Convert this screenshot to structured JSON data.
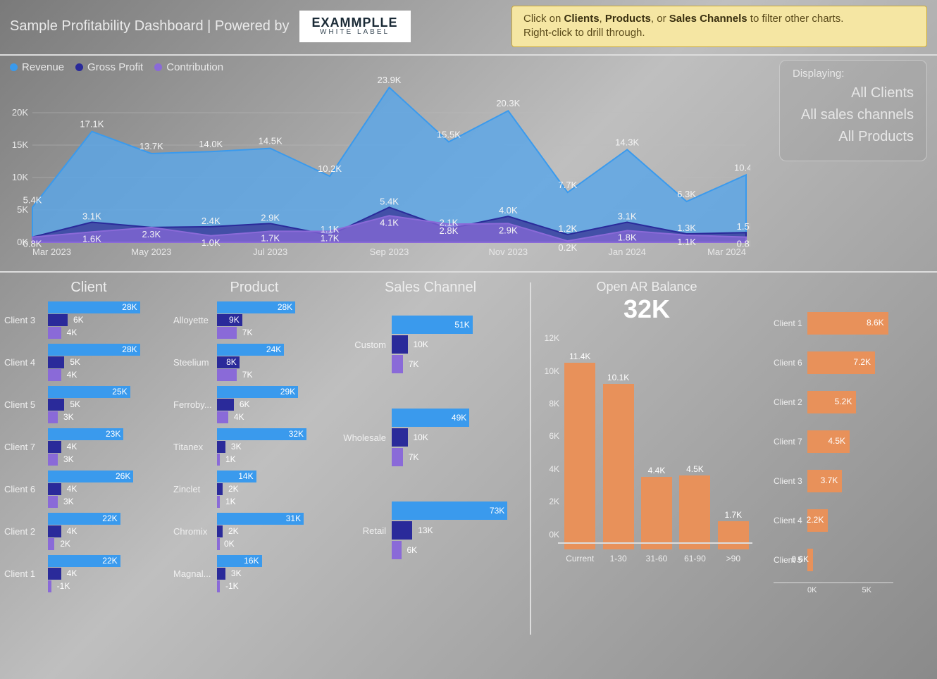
{
  "header": {
    "title": "Sample Profitability Dashboard | Powered by",
    "logo_main": "EXAMMPLLE",
    "logo_sub": "WHITE LABEL",
    "hint_line1_a": "Click on ",
    "hint_b1": "Clients",
    "hint_s1": ", ",
    "hint_b2": "Products",
    "hint_s2": ", or ",
    "hint_b3": "Sales Channels",
    "hint_line1_b": " to filter other charts.",
    "hint_line2": "Right-click to drill through."
  },
  "display_box": {
    "label": "Displaying:",
    "v1": "All Clients",
    "v2": "All sales channels",
    "v3": "All Products"
  },
  "area_chart": {
    "legend": [
      {
        "label": "Revenue",
        "color": "#3a9aed"
      },
      {
        "label": "Gross Profit",
        "color": "#2a2a9a"
      },
      {
        "label": "Contribution",
        "color": "#8a6ad8"
      }
    ],
    "y_ticks": [
      "0K",
      "5K",
      "10K",
      "15K",
      "20K"
    ],
    "y_max": 25,
    "x_labels": [
      "Mar 2023",
      "May 2023",
      "Jul 2023",
      "Sep 2023",
      "Nov 2023",
      "Jan 2024",
      "Mar 2024"
    ],
    "n_points": 13,
    "series": {
      "revenue": {
        "color": "#3a9aed",
        "fill": "#5aa6e8",
        "opacity": 0.82,
        "values": [
          5.4,
          17.1,
          13.7,
          14.0,
          14.5,
          10.2,
          23.9,
          15.5,
          20.3,
          7.7,
          14.3,
          6.3,
          10.4
        ]
      },
      "gross": {
        "color": "#2a2a9a",
        "fill": "#3a3a9a",
        "opacity": 0.8,
        "values": [
          0.8,
          3.1,
          2.3,
          2.4,
          2.9,
          1.1,
          5.4,
          2.1,
          4.0,
          1.2,
          3.1,
          1.3,
          1.5
        ]
      },
      "contribution": {
        "color": "#8a6ad8",
        "fill": "#8a6ad8",
        "opacity": 0.7,
        "values": [
          0.8,
          1.6,
          2.3,
          1.0,
          1.7,
          1.7,
          4.1,
          2.8,
          2.9,
          0.2,
          1.8,
          1.1,
          0.8
        ]
      }
    },
    "point_labels": {
      "revenue": [
        "5.4K",
        "17.1K",
        "13.7K",
        "14.0K",
        "14.5K",
        "10.2K",
        "23.9K",
        "15.5K",
        "20.3K",
        "7.7K",
        "14.3K",
        "6.3K",
        "10.4K"
      ],
      "gross": [
        "",
        "3.1K",
        "",
        "2.4K",
        "2.9K",
        "1.1K",
        "5.4K",
        "2.1K",
        "4.0K",
        "1.2K",
        "3.1K",
        "1.3K",
        "1.5K"
      ],
      "contribution": [
        "0.8K",
        "1.6K",
        "2.3K",
        "1.0K",
        "1.7K",
        "1.7K",
        "4.1K",
        "2.8K",
        "2.9K",
        "0.2K",
        "1.8K",
        "1.1K",
        "0.8K"
      ]
    }
  },
  "bar_colors": {
    "revenue": "#3a9aed",
    "gross": "#2a2a9a",
    "contrib": "#8a6ad8"
  },
  "client": {
    "title": "Client",
    "max": 30,
    "rows": [
      {
        "name": "Client 3",
        "v": [
          28,
          6,
          4
        ],
        "t": [
          "28K",
          "6K",
          "4K"
        ]
      },
      {
        "name": "Client 4",
        "v": [
          28,
          5,
          4
        ],
        "t": [
          "28K",
          "5K",
          "4K"
        ]
      },
      {
        "name": "Client 5",
        "v": [
          25,
          5,
          3
        ],
        "t": [
          "25K",
          "5K",
          "3K"
        ]
      },
      {
        "name": "Client 7",
        "v": [
          23,
          4,
          3
        ],
        "t": [
          "23K",
          "4K",
          "3K"
        ]
      },
      {
        "name": "Client 6",
        "v": [
          26,
          4,
          3
        ],
        "t": [
          "26K",
          "4K",
          "3K"
        ]
      },
      {
        "name": "Client 2",
        "v": [
          22,
          4,
          2
        ],
        "t": [
          "22K",
          "4K",
          "2K"
        ]
      },
      {
        "name": "Client 1",
        "v": [
          22,
          4,
          -1
        ],
        "t": [
          "22K",
          "4K",
          "-1K"
        ]
      }
    ]
  },
  "product": {
    "title": "Product",
    "max": 34,
    "rows": [
      {
        "name": "Alloyette",
        "v": [
          28,
          9,
          7
        ],
        "t": [
          "28K",
          "9K",
          "7K"
        ]
      },
      {
        "name": "Steelium",
        "v": [
          24,
          8,
          7
        ],
        "t": [
          "24K",
          "8K",
          "7K"
        ]
      },
      {
        "name": "Ferroby...",
        "v": [
          29,
          6,
          4
        ],
        "t": [
          "29K",
          "6K",
          "4K"
        ]
      },
      {
        "name": "Titanex",
        "v": [
          32,
          3,
          1
        ],
        "t": [
          "32K",
          "3K",
          "1K"
        ]
      },
      {
        "name": "Zinclet",
        "v": [
          14,
          2,
          1
        ],
        "t": [
          "14K",
          "2K",
          "1K"
        ]
      },
      {
        "name": "Chromix",
        "v": [
          31,
          2,
          0
        ],
        "t": [
          "31K",
          "2K",
          "0K"
        ]
      },
      {
        "name": "Magnal...",
        "v": [
          16,
          3,
          -1
        ],
        "t": [
          "16K",
          "3K",
          "-1K"
        ]
      }
    ]
  },
  "channel": {
    "title": "Sales Channel",
    "max": 80,
    "rows": [
      {
        "name": "Custom",
        "v": [
          51,
          10,
          7
        ],
        "t": [
          "51K",
          "10K",
          "7K"
        ]
      },
      {
        "name": "Wholesale",
        "v": [
          49,
          10,
          7
        ],
        "t": [
          "49K",
          "10K",
          "7K"
        ]
      },
      {
        "name": "Retail",
        "v": [
          73,
          13,
          6
        ],
        "t": [
          "73K",
          "13K",
          "6K"
        ]
      }
    ]
  },
  "ar": {
    "title": "Open AR Balance",
    "value": "32K",
    "color": "#e8915a",
    "y_ticks": [
      {
        "v": 0,
        "t": "0K"
      },
      {
        "v": 2,
        "t": "2K"
      },
      {
        "v": 4,
        "t": "4K"
      },
      {
        "v": 6,
        "t": "6K"
      },
      {
        "v": 8,
        "t": "8K"
      },
      {
        "v": 10,
        "t": "10K"
      },
      {
        "v": 12,
        "t": "12K"
      }
    ],
    "y_max": 12.5,
    "buckets": [
      {
        "cat": "Current",
        "v": 11.4,
        "t": "11.4K"
      },
      {
        "cat": "1-30",
        "v": 10.1,
        "t": "10.1K"
      },
      {
        "cat": "31-60",
        "v": 4.4,
        "t": "4.4K"
      },
      {
        "cat": "61-90",
        "v": 4.5,
        "t": "4.5K"
      },
      {
        "cat": ">90",
        "v": 1.7,
        "t": "1.7K"
      }
    ],
    "clients_max": 9,
    "clients": [
      {
        "name": "Client 1",
        "v": 8.6,
        "t": "8.6K"
      },
      {
        "name": "Client 6",
        "v": 7.2,
        "t": "7.2K"
      },
      {
        "name": "Client 2",
        "v": 5.2,
        "t": "5.2K"
      },
      {
        "name": "Client 7",
        "v": 4.5,
        "t": "4.5K"
      },
      {
        "name": "Client 3",
        "v": 3.7,
        "t": "3.7K"
      },
      {
        "name": "Client 4",
        "v": 2.2,
        "t": "2.2K"
      },
      {
        "name": "Client 5",
        "v": 0.6,
        "t": "0.6K"
      }
    ],
    "x_ticks": [
      "0K",
      "5K"
    ]
  }
}
